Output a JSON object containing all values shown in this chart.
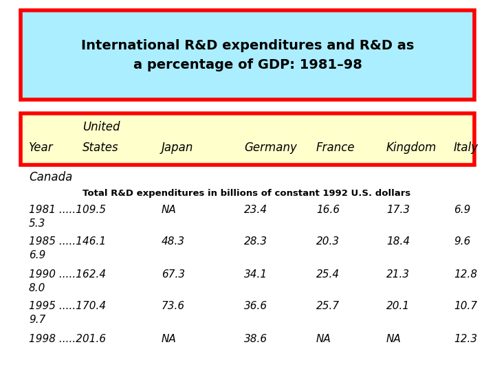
{
  "title_line1": "International R&D expenditures and R&D as",
  "title_line2": "a percentage of GDP: 1981–98",
  "title_bg": "#aaeeff",
  "title_border": "#ff0000",
  "header_bg": "#ffffcc",
  "header_border": "#ff0000",
  "header_extra": "Canada",
  "subtitle": "Total R&D expenditures in billions of constant 1992 U.S. dollars",
  "rows": [
    {
      "year": "1981 .....109.5",
      "canada": "5.3",
      "japan": "NA",
      "germany": "23.4",
      "france": "16.6",
      "kingdom": "17.3",
      "italy": "6.9"
    },
    {
      "year": "1985 .....146.1",
      "canada": "6.9",
      "japan": "48.3",
      "germany": "28.3",
      "france": "20.3",
      "kingdom": "18.4",
      "italy": "9.6"
    },
    {
      "year": "1990 .....162.4",
      "canada": "8.0",
      "japan": "67.3",
      "germany": "34.1",
      "france": "25.4",
      "kingdom": "21.3",
      "italy": "12.8"
    },
    {
      "year": "1995 .....170.4",
      "canada": "9.7",
      "japan": "73.6",
      "germany": "36.6",
      "france": "25.7",
      "kingdom": "20.1",
      "italy": "10.7"
    },
    {
      "year": "1998 .....201.6",
      "canada": "",
      "japan": "NA",
      "germany": "38.6",
      "france": "NA",
      "kingdom": "NA",
      "italy": "12.3"
    }
  ],
  "bg_color": "#ffffff",
  "text_color": "#000000",
  "font_size_title": 14,
  "font_size_header": 12,
  "font_size_data": 11,
  "font_size_subtitle": 9.5
}
